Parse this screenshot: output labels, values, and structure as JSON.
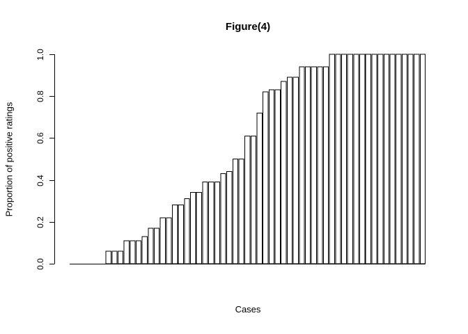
{
  "chart_data": {
    "type": "bar",
    "title": "Figure(4)",
    "xlabel": "Cases",
    "ylabel": "Proportion of positive ratings",
    "ylim": [
      0.0,
      1.0
    ],
    "yticks": [
      0.0,
      0.2,
      0.4,
      0.6,
      0.8,
      1.0
    ],
    "ytick_labels": [
      "0.0",
      "0.2",
      "0.4",
      "0.6",
      "0.8",
      "1.0"
    ],
    "grid": false,
    "legend": "none",
    "bar_fill": "#ffffff",
    "bar_stroke": "#000000",
    "x_tick_labels": "none",
    "values": [
      0,
      0,
      0,
      0,
      0,
      0,
      0.06,
      0.06,
      0.06,
      0.11,
      0.11,
      0.11,
      0.13,
      0.17,
      0.17,
      0.22,
      0.22,
      0.28,
      0.28,
      0.31,
      0.34,
      0.34,
      0.39,
      0.39,
      0.39,
      0.43,
      0.44,
      0.5,
      0.5,
      0.61,
      0.61,
      0.72,
      0.82,
      0.83,
      0.83,
      0.87,
      0.89,
      0.89,
      0.94,
      0.94,
      0.94,
      0.94,
      0.94,
      1,
      1,
      1,
      1,
      1,
      1,
      1,
      1,
      1,
      1,
      1,
      1,
      1,
      1,
      1,
      1
    ]
  }
}
